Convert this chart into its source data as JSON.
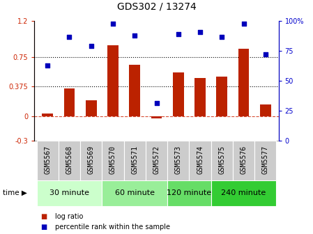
{
  "title": "GDS302 / 13274",
  "samples": [
    "GSM5567",
    "GSM5568",
    "GSM5569",
    "GSM5570",
    "GSM5571",
    "GSM5572",
    "GSM5573",
    "GSM5574",
    "GSM5575",
    "GSM5576",
    "GSM5577"
  ],
  "log_ratio": [
    0.04,
    0.35,
    0.2,
    0.9,
    0.65,
    -0.02,
    0.55,
    0.48,
    0.5,
    0.85,
    0.15
  ],
  "percentile": [
    63,
    87,
    79,
    98,
    88,
    31,
    89,
    91,
    87,
    98,
    72
  ],
  "bar_color": "#bb2200",
  "dot_color": "#0000bb",
  "ylim_left": [
    -0.3,
    1.2
  ],
  "ylim_right": [
    0,
    100
  ],
  "yticks_left": [
    -0.3,
    0,
    0.375,
    0.75,
    1.2
  ],
  "ytick_labels_left": [
    "-0.3",
    "0",
    "0.375",
    "0.75",
    "1.2"
  ],
  "yticks_right": [
    0,
    25,
    50,
    75,
    100
  ],
  "ytick_labels_right": [
    "0",
    "25",
    "50",
    "75",
    "100%"
  ],
  "hline_zero_color": "#cc2200",
  "hline_dot1": 0.375,
  "hline_dot2": 0.75,
  "time_groups": [
    {
      "label": "30 minute",
      "start": 0,
      "end": 3,
      "color": "#ccffcc"
    },
    {
      "label": "60 minute",
      "start": 3,
      "end": 6,
      "color": "#99ee99"
    },
    {
      "label": "120 minute",
      "start": 6,
      "end": 8,
      "color": "#66dd66"
    },
    {
      "label": "240 minute",
      "start": 8,
      "end": 11,
      "color": "#33cc33"
    }
  ],
  "xlabel_time": "time",
  "legend_bar": "log ratio",
  "legend_dot": "percentile rank within the sample",
  "title_fontsize": 10,
  "tick_fontsize": 7,
  "label_fontsize": 7,
  "group_fontsize": 8,
  "axis_color_left": "#cc2200",
  "axis_color_right": "#0000cc",
  "bg_color": "white",
  "label_bg": "#cccccc",
  "bar_width": 0.5
}
